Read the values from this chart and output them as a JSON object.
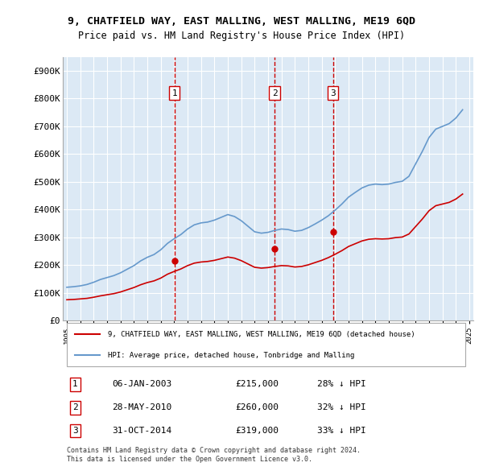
{
  "title": "9, CHATFIELD WAY, EAST MALLING, WEST MALLING, ME19 6QD",
  "subtitle": "Price paid vs. HM Land Registry's House Price Index (HPI)",
  "ylabel": "",
  "background_color": "#dce9f5",
  "plot_bg_color": "#dce9f5",
  "outer_bg_color": "#ffffff",
  "red_line_color": "#cc0000",
  "blue_line_color": "#6699cc",
  "vline_color": "#cc0000",
  "grid_color": "#ffffff",
  "ylim": [
    0,
    950000
  ],
  "yticks": [
    0,
    100000,
    200000,
    300000,
    400000,
    500000,
    600000,
    700000,
    800000,
    900000
  ],
  "ytick_labels": [
    "£0",
    "£100K",
    "£200K",
    "£300K",
    "£400K",
    "£500K",
    "£600K",
    "£700K",
    "£800K",
    "£900K"
  ],
  "sale_dates": [
    "2003-01-06",
    "2010-05-28",
    "2014-10-31"
  ],
  "sale_prices": [
    215000,
    260000,
    319000
  ],
  "sale_labels": [
    "1",
    "2",
    "3"
  ],
  "sale_date_labels": [
    "06-JAN-2003",
    "28-MAY-2010",
    "31-OCT-2014"
  ],
  "sale_price_labels": [
    "£215,000",
    "£260,000",
    "£319,000"
  ],
  "sale_pct_labels": [
    "28% ↓ HPI",
    "32% ↓ HPI",
    "33% ↓ HPI"
  ],
  "legend_red_label": "9, CHATFIELD WAY, EAST MALLING, WEST MALLING, ME19 6QD (detached house)",
  "legend_blue_label": "HPI: Average price, detached house, Tonbridge and Malling",
  "footer_text": "Contains HM Land Registry data © Crown copyright and database right 2024.\nThis data is licensed under the Open Government Licence v3.0.",
  "xstart_year": 1995,
  "xend_year": 2025,
  "hpi_x": [
    1995,
    1995.5,
    1996,
    1996.5,
    1997,
    1997.5,
    1998,
    1998.5,
    1999,
    1999.5,
    2000,
    2000.5,
    2001,
    2001.5,
    2002,
    2002.5,
    2003,
    2003.5,
    2004,
    2004.5,
    2005,
    2005.5,
    2006,
    2006.5,
    2007,
    2007.5,
    2008,
    2008.5,
    2009,
    2009.5,
    2010,
    2010.5,
    2011,
    2011.5,
    2012,
    2012.5,
    2013,
    2013.5,
    2014,
    2014.5,
    2015,
    2015.5,
    2016,
    2016.5,
    2017,
    2017.5,
    2018,
    2018.5,
    2019,
    2019.5,
    2020,
    2020.5,
    2021,
    2021.5,
    2022,
    2022.5,
    2023,
    2023.5,
    2024,
    2024.5
  ],
  "hpi_y": [
    120000,
    122000,
    125000,
    130000,
    138000,
    148000,
    155000,
    162000,
    172000,
    185000,
    198000,
    215000,
    228000,
    238000,
    255000,
    278000,
    295000,
    310000,
    330000,
    345000,
    352000,
    355000,
    362000,
    372000,
    382000,
    375000,
    360000,
    340000,
    320000,
    315000,
    318000,
    325000,
    330000,
    328000,
    322000,
    325000,
    335000,
    348000,
    362000,
    378000,
    398000,
    420000,
    445000,
    462000,
    478000,
    488000,
    492000,
    490000,
    492000,
    498000,
    502000,
    520000,
    565000,
    610000,
    660000,
    690000,
    700000,
    710000,
    730000,
    760000
  ],
  "red_x": [
    1995,
    1995.5,
    1996,
    1996.5,
    1997,
    1997.5,
    1998,
    1998.5,
    1999,
    1999.5,
    2000,
    2000.5,
    2001,
    2001.5,
    2002,
    2002.5,
    2003,
    2003.5,
    2004,
    2004.5,
    2005,
    2005.5,
    2006,
    2006.5,
    2007,
    2007.5,
    2008,
    2008.5,
    2009,
    2009.5,
    2010,
    2010.5,
    2011,
    2011.5,
    2012,
    2012.5,
    2013,
    2013.5,
    2014,
    2014.5,
    2015,
    2015.5,
    2016,
    2016.5,
    2017,
    2017.5,
    2018,
    2018.5,
    2019,
    2019.5,
    2020,
    2020.5,
    2021,
    2021.5,
    2022,
    2022.5,
    2023,
    2023.5,
    2024,
    2024.5
  ],
  "red_y": [
    75000,
    76000,
    78000,
    80000,
    84000,
    89000,
    93000,
    97000,
    103000,
    111000,
    119000,
    129000,
    137000,
    143000,
    153000,
    167000,
    177000,
    186000,
    198000,
    207000,
    211000,
    213000,
    217000,
    223000,
    229000,
    225000,
    216000,
    204000,
    192000,
    189000,
    191000,
    195000,
    198000,
    197000,
    193000,
    195000,
    201000,
    209000,
    217000,
    227000,
    239000,
    252000,
    267000,
    277000,
    287000,
    293000,
    295000,
    294000,
    295000,
    299000,
    301000,
    312000,
    339000,
    366000,
    396000,
    414000,
    420000,
    426000,
    438000,
    456000
  ]
}
